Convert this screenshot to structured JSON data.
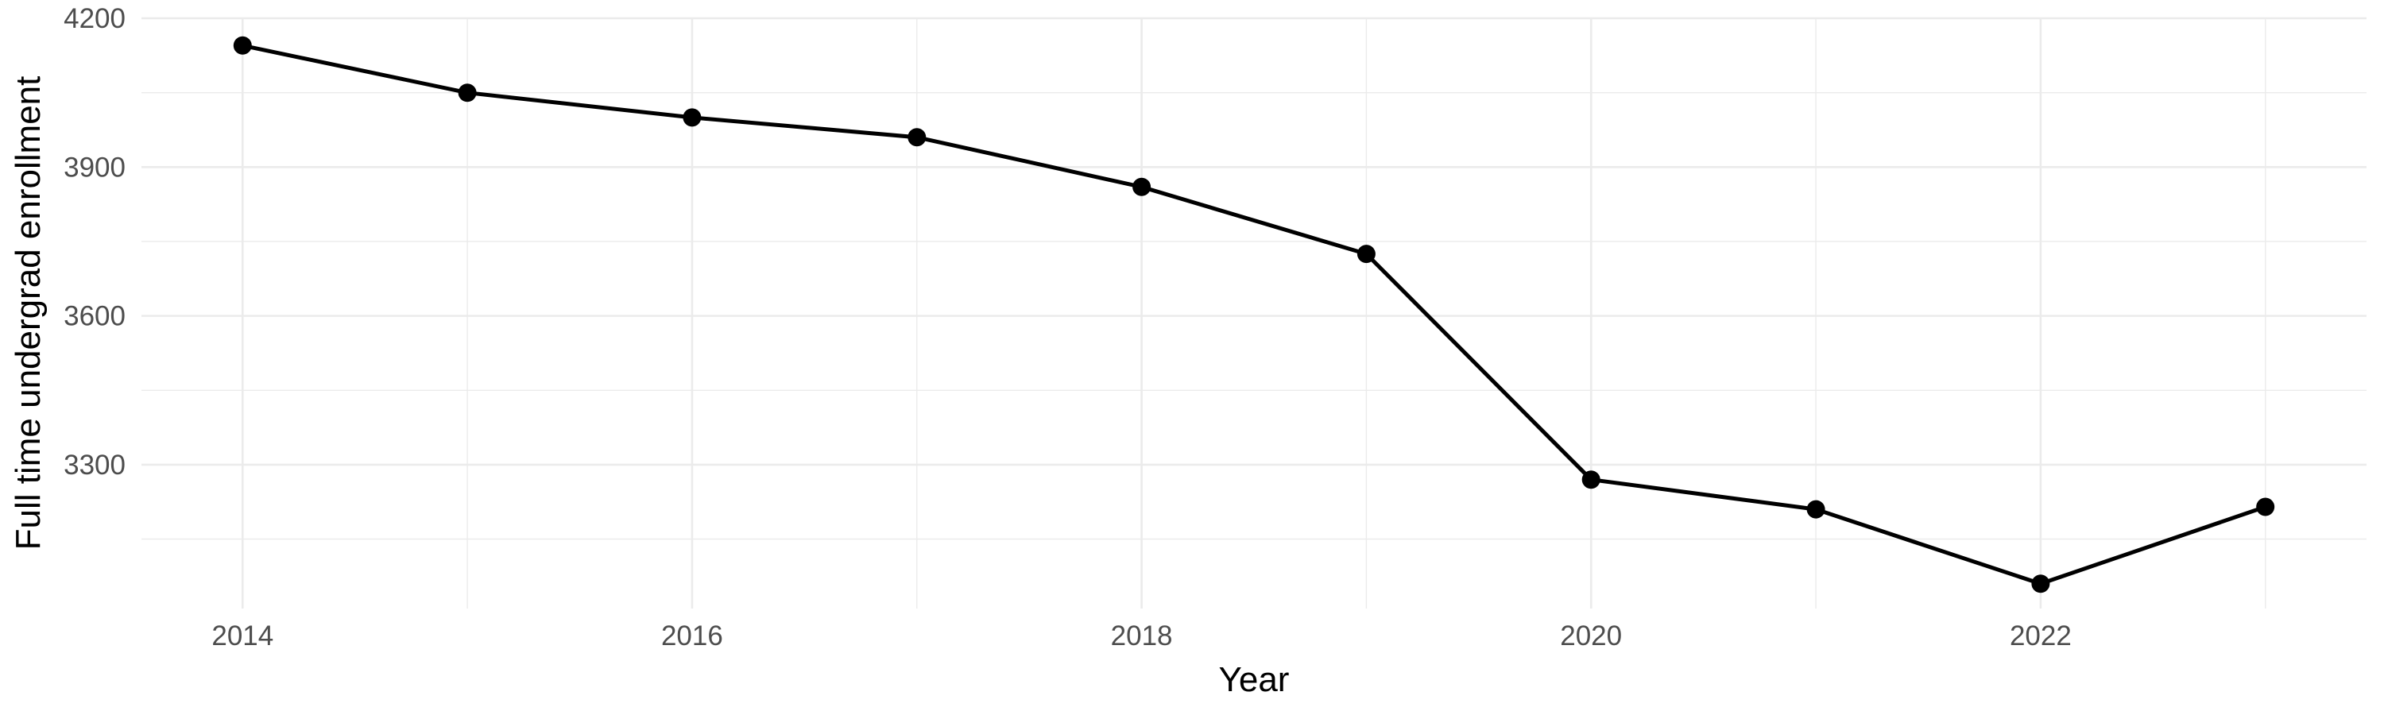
{
  "chart_data": {
    "type": "line",
    "title": "",
    "xlabel": "Year",
    "ylabel": "Full time undergrad enrollment",
    "x": [
      2014,
      2015,
      2016,
      2017,
      2018,
      2019,
      2020,
      2021,
      2022,
      2023
    ],
    "series": [
      {
        "name": "Full time undergrad enrollment",
        "values": [
          4145,
          4050,
          4000,
          3960,
          3860,
          3725,
          3270,
          3210,
          3060,
          3215
        ]
      }
    ],
    "x_major_ticks": [
      2014,
      2016,
      2018,
      2020,
      2022
    ],
    "x_minor_ticks": [
      2015,
      2017,
      2019,
      2021,
      2023
    ],
    "y_major_ticks": [
      4200,
      3900,
      3600,
      3300
    ],
    "y_minor_ticks": [
      4050,
      3750,
      3450,
      3150
    ],
    "xlim": [
      2013.55,
      2023.45
    ],
    "ylim": [
      3010,
      4200
    ],
    "grid": true,
    "legend": false,
    "point_style": "filled-circle",
    "colors": {
      "line": "#000000",
      "point": "#000000",
      "grid": "#ebebeb",
      "tick_label": "#4d4d4d",
      "axis_title": "#000000",
      "background": "#ffffff"
    }
  }
}
